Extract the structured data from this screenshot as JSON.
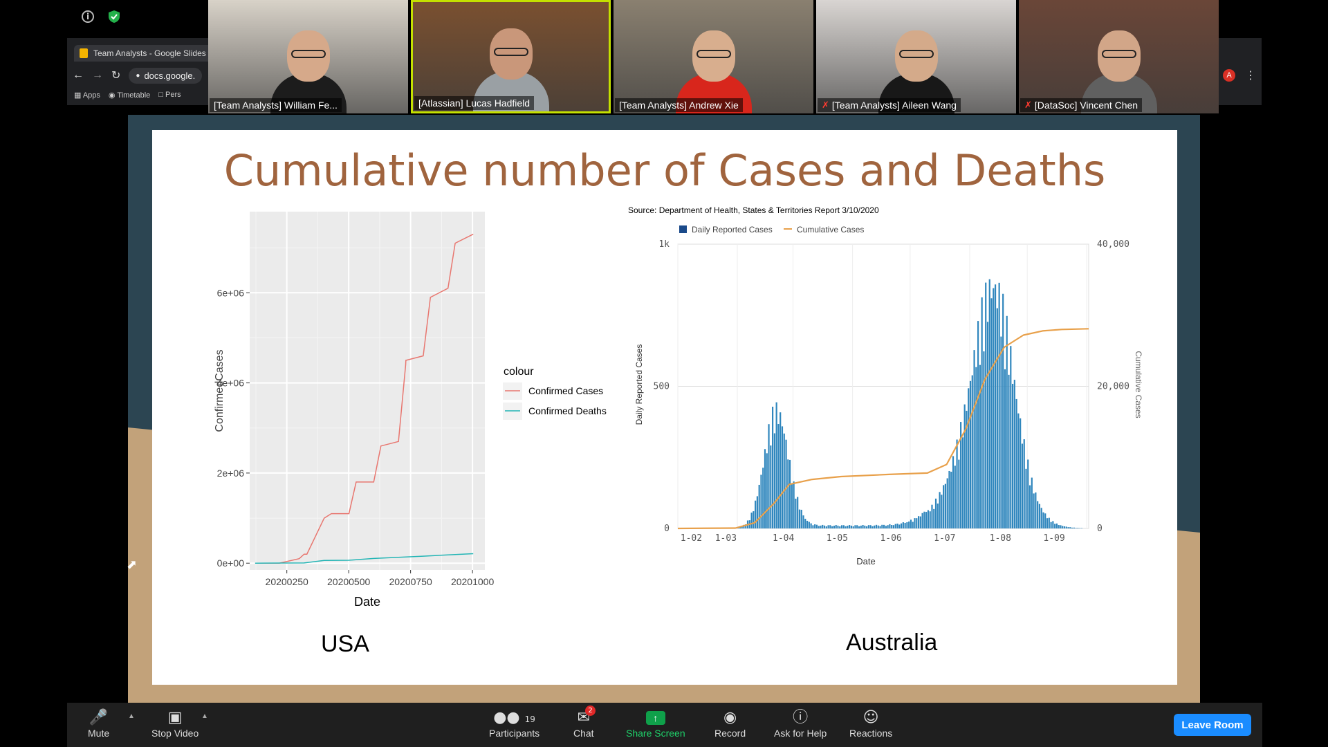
{
  "browser": {
    "tab_title": "Team Analysts - Google Slides",
    "url": "docs.google.",
    "bookmarks": [
      "Apps",
      "Timetable",
      "Pers"
    ],
    "profile_initial": "A"
  },
  "participants": [
    {
      "name": "[Team Analysts] William Fe...",
      "muted": false,
      "active": false,
      "bg": "#d8d2c8",
      "shirt": "#1c1c1c",
      "skin": "#d6a98a"
    },
    {
      "name": "[Atlassian] Lucas Hadfield",
      "muted": false,
      "active": true,
      "bg": "#7a5030",
      "shirt": "#9aa0a4",
      "skin": "#c9977a"
    },
    {
      "name": "[Team Analysts] Andrew Xie",
      "muted": false,
      "active": false,
      "bg": "#8a8070",
      "shirt": "#d8261c",
      "skin": "#d8ae8e"
    },
    {
      "name": "[Team Analysts] Aileen Wang",
      "muted": true,
      "active": false,
      "bg": "#d9d5d2",
      "shirt": "#181818",
      "skin": "#d4aa8a"
    },
    {
      "name": "[DataSoc] Vincent Chen",
      "muted": true,
      "active": false,
      "bg": "#6a4638",
      "shirt": "#606060",
      "skin": "#d2a688"
    }
  ],
  "slide": {
    "title": "Cumulative number of Cases and Deaths",
    "caption_left": "USA",
    "caption_right": "Australia"
  },
  "chart_data": [
    {
      "type": "line",
      "title": "",
      "xlabel": "Date",
      "ylabel": "ConfirmedCases",
      "x_ticks": [
        20200250,
        20200500,
        20200750,
        20201000
      ],
      "x_tick_labels": [
        "20200250",
        "20200500",
        "20200750",
        "20201000"
      ],
      "y_ticks": [
        0,
        2000000,
        4000000,
        6000000
      ],
      "y_tick_labels": [
        "0e+00",
        "2e+06",
        "4e+06",
        "6e+06"
      ],
      "xlim": [
        20200100,
        20201050
      ],
      "ylim": [
        -150000,
        7800000
      ],
      "legend_title": "colour",
      "series": [
        {
          "name": "Confirmed Cases",
          "color": "#e8766f",
          "x": [
            20200122,
            20200220,
            20200300,
            20200320,
            20200331,
            20200401,
            20200430,
            20200501,
            20200530,
            20200601,
            20200630,
            20200701,
            20200730,
            20200731,
            20200801,
            20200830,
            20200901,
            20200930,
            20201003
          ],
          "y": [
            0,
            0,
            100000,
            200000,
            200000,
            1000000,
            1100000,
            1100000,
            1800000,
            1800000,
            2600000,
            2700000,
            4400000,
            4500000,
            4600000,
            5900000,
            6100000,
            7100000,
            7300000
          ]
        },
        {
          "name": "Confirmed Deaths",
          "color": "#23b5b5",
          "x": [
            20200122,
            20200320,
            20200401,
            20200501,
            20200601,
            20200701,
            20200801,
            20200901,
            20201003
          ],
          "y": [
            0,
            5000,
            60000,
            65000,
            105000,
            130000,
            155000,
            185000,
            210000
          ]
        }
      ]
    },
    {
      "type": "bar",
      "title": "Source: Department of Health, States & Territories Report 3/10/2020",
      "xlabel": "Date",
      "ylabel": "Daily Reported Cases",
      "y2label": "Cumulative Cases",
      "x_tick_labels": [
        "1-02",
        "1-03",
        "1-04",
        "1-05",
        "1-06",
        "1-07",
        "1-08",
        "1-09"
      ],
      "y_tick_labels": [
        "0",
        "500",
        "1k"
      ],
      "y2_tick_labels": [
        "0",
        "20,000",
        "40,000"
      ],
      "ylim": [
        0,
        1000
      ],
      "y2lim": [
        0,
        40000
      ],
      "legend": [
        "Daily Reported Cases",
        "Cumulative Cases"
      ],
      "series": [
        {
          "name": "Daily Reported Cases",
          "color": "#2f86bd",
          "peaks": [
            {
              "day": 51,
              "value": 450,
              "width": 9
            },
            {
              "day": 158,
              "value": 330,
              "width": 22
            },
            {
              "day": 165,
              "value": 620,
              "width": 14
            }
          ]
        },
        {
          "name": "Cumulative Cases",
          "color": "#e8a04a",
          "x": [
            0,
            30,
            40,
            50,
            58,
            70,
            85,
            110,
            130,
            140,
            150,
            160,
            170,
            180,
            190,
            200,
            214
          ],
          "y": [
            0,
            50,
            800,
            3500,
            6200,
            6900,
            7300,
            7600,
            7800,
            9000,
            14000,
            21000,
            25500,
            27200,
            27800,
            28000,
            28100
          ]
        }
      ]
    }
  ],
  "toolbar": {
    "mute": "Mute",
    "stop_video": "Stop Video",
    "participants": "Participants",
    "participants_count": "19",
    "chat": "Chat",
    "chat_badge": "2",
    "share_screen": "Share Screen",
    "record": "Record",
    "ask_for_help": "Ask for Help",
    "reactions": "Reactions",
    "leave_room": "Leave Room"
  }
}
